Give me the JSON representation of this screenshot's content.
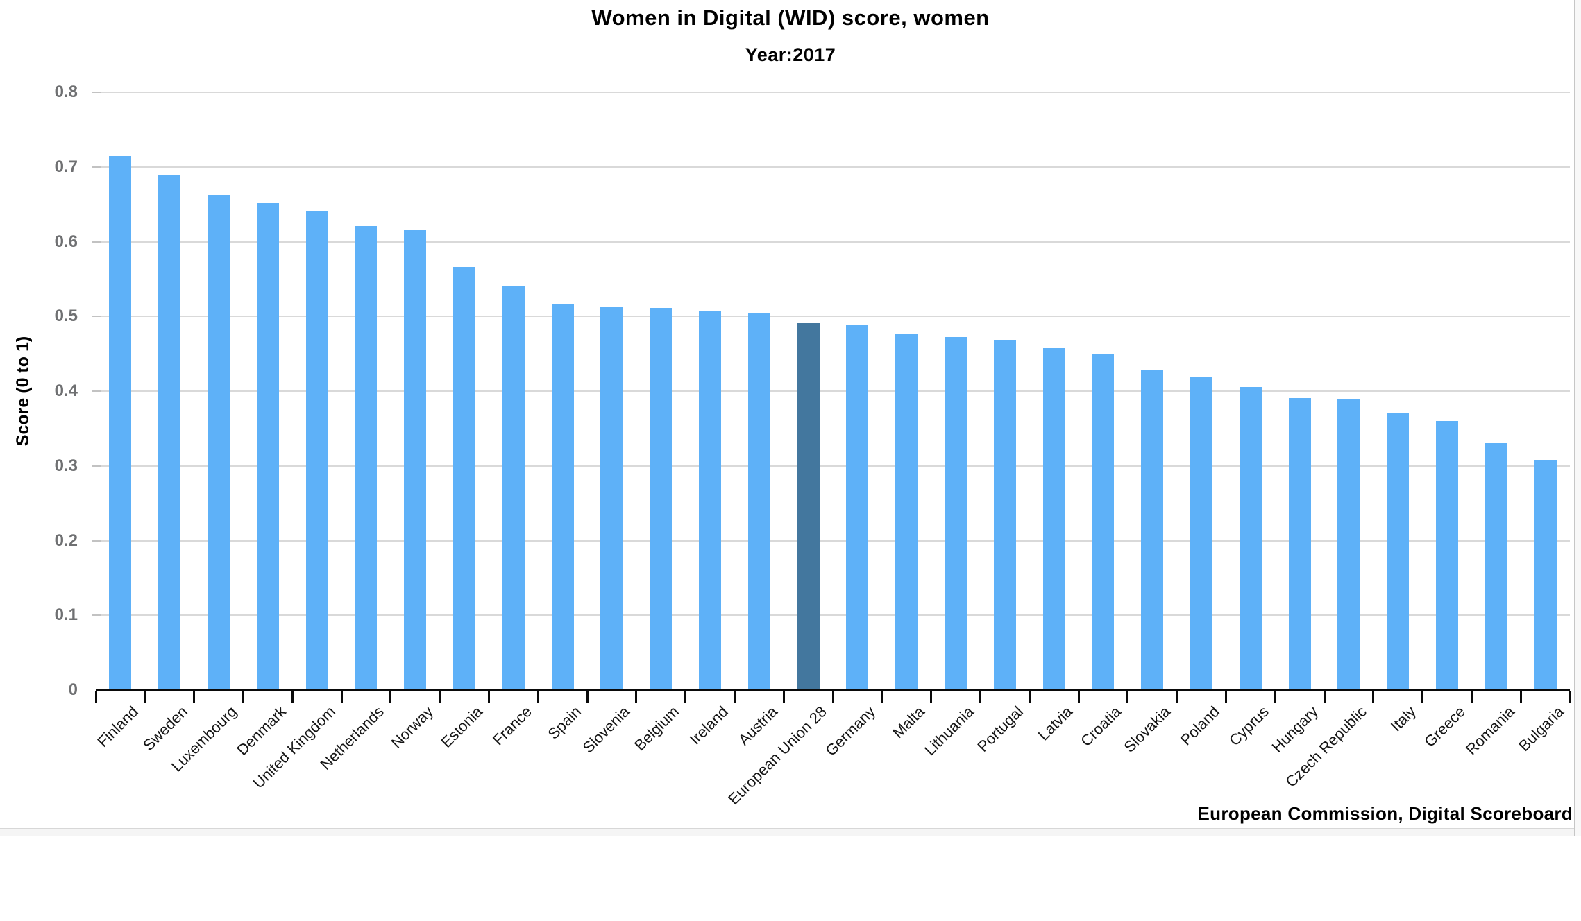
{
  "header": {
    "title": "Women in Digital (WID) score, women",
    "subtitle": "Year:2017"
  },
  "footer": {
    "source": "European Commission, Digital Scoreboard"
  },
  "chart_data": {
    "type": "bar",
    "title": "Women in Digital (WID) score, women",
    "subtitle": "Year:2017",
    "xlabel": "",
    "ylabel": "Score (0 to 1)",
    "ylim": [
      0,
      0.8
    ],
    "ytick_labels": [
      "0",
      "0.1",
      "0.2",
      "0.3",
      "0.4",
      "0.5",
      "0.6",
      "0.7",
      "0.8"
    ],
    "grid": true,
    "legend": false,
    "source": "European Commission, Digital Scoreboard",
    "categories": [
      "Finland",
      "Sweden",
      "Luxembourg",
      "Denmark",
      "United Kingdom",
      "Netherlands",
      "Norway",
      "Estonia",
      "France",
      "Spain",
      "Slovenia",
      "Belgium",
      "Ireland",
      "Austria",
      "European Union 28",
      "Germany",
      "Malta",
      "Lithuania",
      "Portugal",
      "Latvia",
      "Croatia",
      "Slovakia",
      "Poland",
      "Cyprus",
      "Hungary",
      "Czech Republic",
      "Italy",
      "Greece",
      "Romania",
      "Bulgaria"
    ],
    "values": [
      0.715,
      0.69,
      0.663,
      0.652,
      0.641,
      0.621,
      0.615,
      0.566,
      0.54,
      0.516,
      0.513,
      0.511,
      0.508,
      0.504,
      0.491,
      0.488,
      0.477,
      0.472,
      0.469,
      0.458,
      0.45,
      0.428,
      0.419,
      0.406,
      0.391,
      0.39,
      0.371,
      0.36,
      0.33,
      0.308
    ],
    "highlight_category": "European Union 28",
    "colors": {
      "bar": "#5eb1f8",
      "highlight_bar": "#43779e",
      "gridline": "#d9d9d9",
      "axis": "#0a0a0a",
      "y_tick_label": "#6f7072"
    }
  }
}
